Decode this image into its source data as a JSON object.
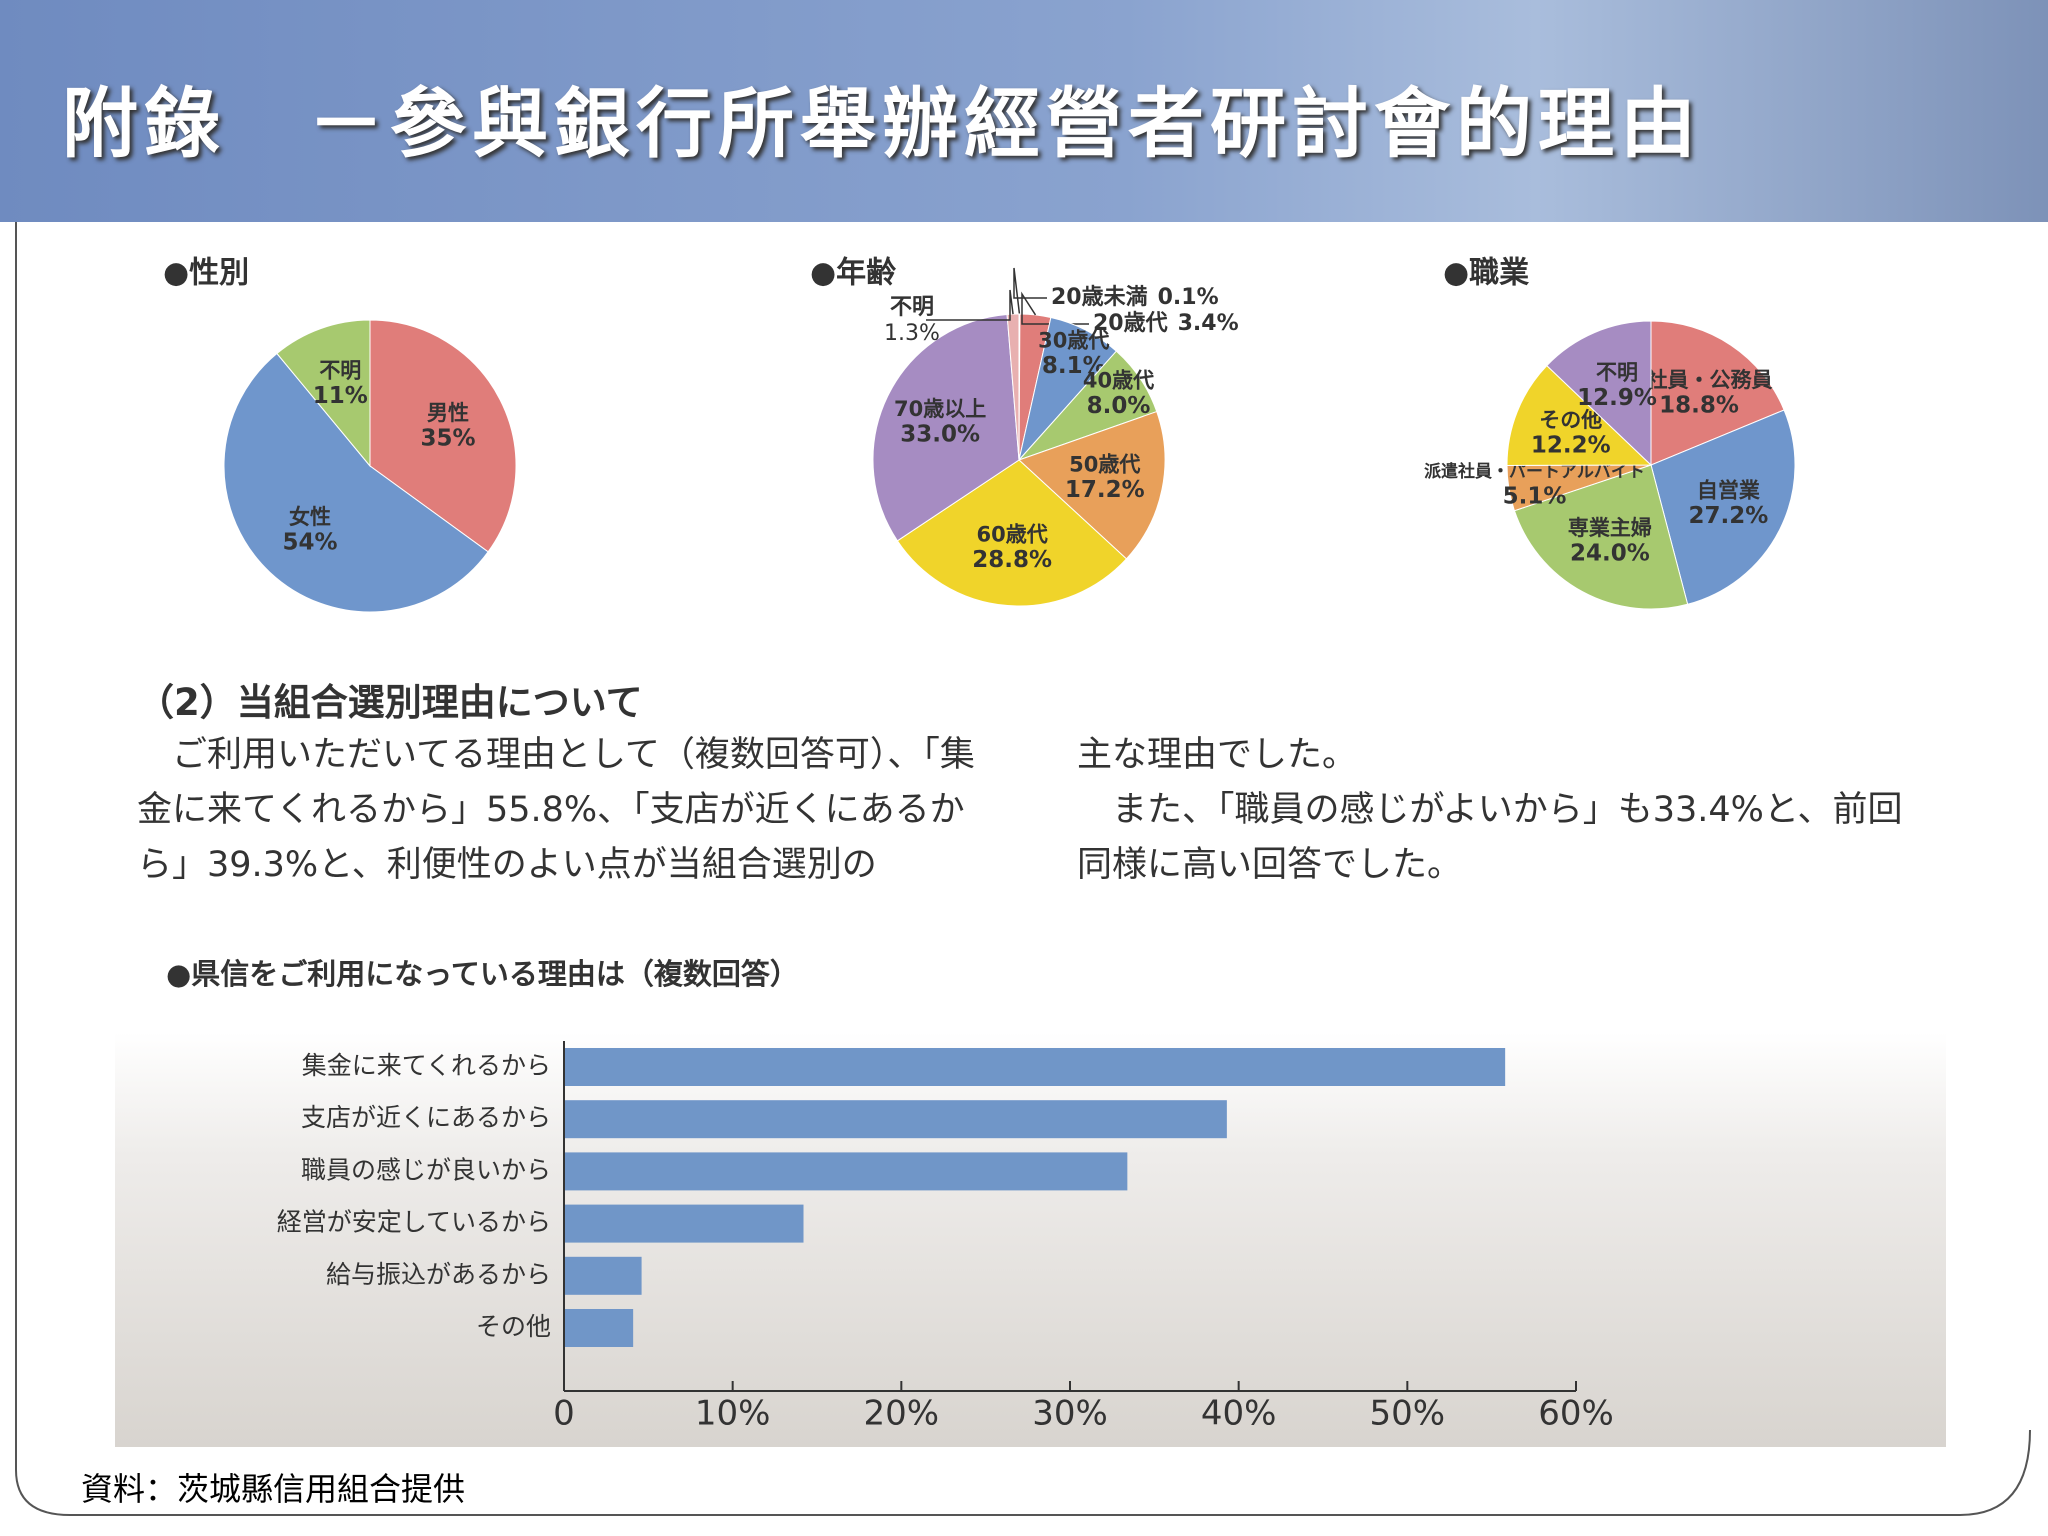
{
  "title": "附錄　－參與銀行所舉辦經營者研討會的理由",
  "section": {
    "heading": "（2）当組合選別理由について",
    "columns": [
      [
        "ご利用いただいてる理由として（複数回答可）、「集金に来てくれるから」55.8%、「支店が近くにあるから」39.3%と、利便性のよい点が当組合選別の"
      ],
      [
        "主な理由でした。",
        "また、「職員の感じがよいから」も33.4%と、前回同様に高い回答でした。"
      ]
    ]
  },
  "source": "資料：茨城縣信用組合提供",
  "chart_data": [
    {
      "type": "pie",
      "title": "●性別",
      "categories": [
        "男性",
        "女性",
        "不明"
      ],
      "values": [
        35,
        54,
        11
      ],
      "value_labels": [
        "35%",
        "54%",
        "11%"
      ],
      "colors": [
        "#e07d7a",
        "#6f96cc",
        "#a7c96f"
      ]
    },
    {
      "type": "pie",
      "title": "●年齢",
      "categories": [
        "20歳未満",
        "20歳代",
        "30歳代",
        "40歳代",
        "50歳代",
        "60歳代",
        "70歳以上",
        "不明"
      ],
      "values": [
        0.1,
        3.4,
        8.1,
        8.0,
        17.2,
        28.8,
        33.0,
        1.3
      ],
      "value_labels": [
        "0.1%",
        "3.4%",
        "8.1%",
        "8.0%",
        "17.2%",
        "28.8%",
        "33.0%",
        "1.3%"
      ],
      "colors": [
        "#f2a6ae",
        "#e07d7a",
        "#6f96cc",
        "#a7c96f",
        "#e8a05a",
        "#f0d42a",
        "#a68cc2",
        "#e8b0b0"
      ]
    },
    {
      "type": "pie",
      "title": "●職業",
      "categories": [
        "会社員・公務員",
        "自営業",
        "専業主婦",
        "派遣社員・パートアルバイト",
        "その他",
        "不明"
      ],
      "values": [
        18.8,
        27.2,
        24.0,
        5.1,
        12.2,
        12.9
      ],
      "value_labels": [
        "18.8%",
        "27.2%",
        "24.0%",
        "5.1%",
        "12.2%",
        "12.9%"
      ],
      "colors": [
        "#e07d7a",
        "#6f96cc",
        "#a7c96f",
        "#e8a05a",
        "#f0d42a",
        "#a68cc2"
      ]
    },
    {
      "type": "bar",
      "horizontal": true,
      "title": "●県信をご利用になっている理由は（複数回答）",
      "categories": [
        "集金に来てくれるから",
        "支店が近くにあるから",
        "職員の感じが良いから",
        "経営が安定しているから",
        "給与振込があるから",
        "その他"
      ],
      "values": [
        55.8,
        39.3,
        33.4,
        14.2,
        4.6,
        4.1
      ],
      "color": "#7096c8",
      "xlim": [
        0,
        60
      ],
      "xticks": [
        0,
        {
          "value": 10,
          "label": "10%"
        },
        {
          "value": 20,
          "label": "20%"
        },
        {
          "value": 30,
          "label": "30%"
        },
        {
          "value": 40,
          "label": "40%"
        },
        {
          "value": 50,
          "label": "50%"
        },
        {
          "value": 60,
          "label": "60%"
        }
      ]
    }
  ]
}
